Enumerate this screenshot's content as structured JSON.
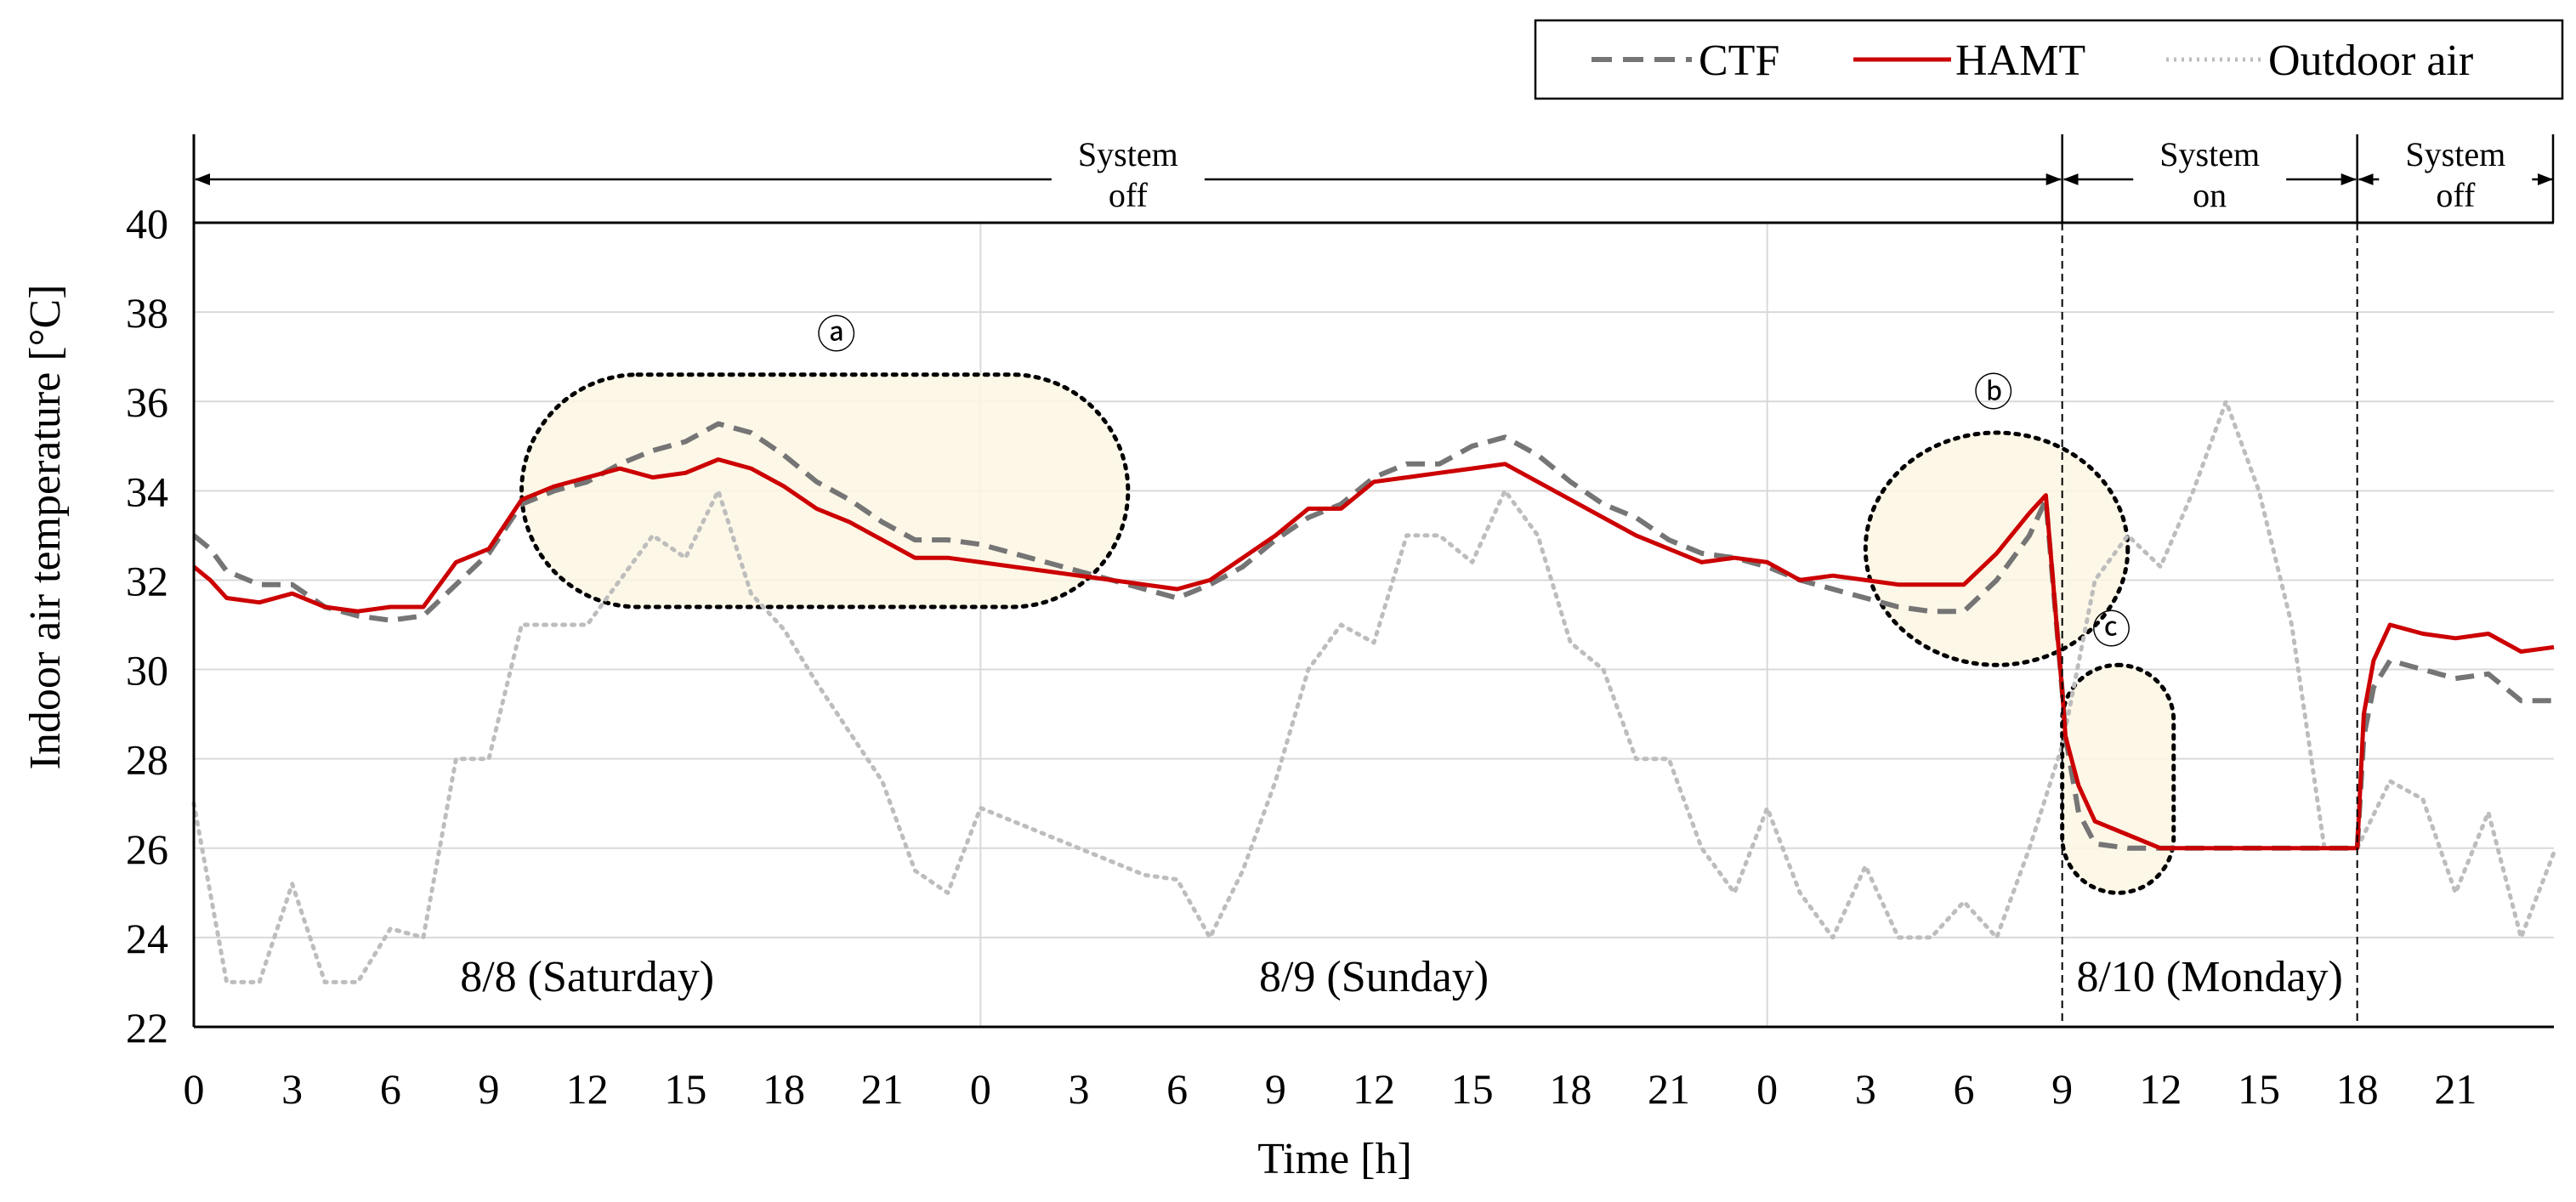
{
  "chart_data": {
    "type": "line",
    "ylabel": "Indoor air temperature [°C]",
    "xlabel": "Time [h]",
    "ylim": [
      22,
      40
    ],
    "y_ticks": [
      22,
      24,
      26,
      28,
      30,
      32,
      34,
      36,
      38,
      40
    ],
    "x_range_hours": [
      0,
      72
    ],
    "x_tick_labels": [
      "0",
      "3",
      "6",
      "9",
      "12",
      "15",
      "18",
      "21",
      "0",
      "3",
      "6",
      "9",
      "12",
      "15",
      "18",
      "21",
      "0",
      "3",
      "6",
      "9",
      "12",
      "15",
      "18",
      "21"
    ],
    "grid": true,
    "legend_position": "top-right",
    "legend": [
      "CTF",
      "HAMT",
      "Outdoor air"
    ],
    "day_labels": [
      {
        "label": "8/8 (Saturday)",
        "hour": 12
      },
      {
        "label": "8/9 (Sunday)",
        "hour": 36
      },
      {
        "label": "8/10 (Monday)",
        "hour": 61.5
      }
    ],
    "periods": [
      {
        "line1": "System",
        "line2": "off",
        "start": 0,
        "end": 57
      },
      {
        "line1": "System",
        "line2": "on",
        "start": 57,
        "end": 66
      },
      {
        "line1": "System",
        "line2": "off",
        "start": 66,
        "end": 72
      }
    ],
    "annotations": [
      {
        "symbol": "ⓐ",
        "kind": "stadium",
        "x_range": [
          10,
          28.5
        ],
        "y_range": [
          31.4,
          36.6
        ],
        "label_at": [
          19.6,
          37.5
        ]
      },
      {
        "symbol": "ⓑ",
        "kind": "ellipse",
        "x_range": [
          51,
          59
        ],
        "y_range": [
          30.1,
          35.3
        ],
        "label_at": [
          54.9,
          36.2
        ]
      },
      {
        "symbol": "ⓒ",
        "kind": "stadium",
        "x_range": [
          57,
          60.4
        ],
        "y_range": [
          25,
          30.1
        ],
        "label_at": [
          58.5,
          30.9
        ]
      }
    ],
    "series": [
      {
        "name": "CTF",
        "color": "#757575",
        "style": "dashed",
        "x": [
          0,
          0.5,
          1,
          2,
          3,
          4,
          5,
          6,
          7,
          8,
          9,
          10,
          11,
          12,
          13,
          14,
          15,
          16,
          17,
          18,
          19,
          20,
          21,
          22,
          23,
          24,
          25,
          26,
          27,
          28,
          29,
          30,
          31,
          32,
          33,
          34,
          35,
          36,
          37,
          38,
          39,
          40,
          41,
          42,
          43,
          44,
          45,
          46,
          47,
          48,
          49,
          50,
          51,
          52,
          53,
          54,
          55,
          56,
          56.5,
          57,
          57.1,
          57.5,
          58,
          59,
          60,
          61,
          62,
          63,
          64,
          65,
          66,
          66.2,
          66.5,
          67,
          68,
          69,
          70,
          71,
          72
        ],
        "y": [
          33,
          32.7,
          32.2,
          31.9,
          31.9,
          31.4,
          31.2,
          31.1,
          31.2,
          31.9,
          32.6,
          33.7,
          34.0,
          34.2,
          34.6,
          34.9,
          35.1,
          35.5,
          35.3,
          34.8,
          34.2,
          33.8,
          33.3,
          32.9,
          32.9,
          32.8,
          32.6,
          32.4,
          32.2,
          32.0,
          31.8,
          31.6,
          31.9,
          32.3,
          32.9,
          33.4,
          33.7,
          34.3,
          34.6,
          34.6,
          35.0,
          35.2,
          34.8,
          34.2,
          33.7,
          33.4,
          32.9,
          32.6,
          32.5,
          32.3,
          32.0,
          31.8,
          31.6,
          31.4,
          31.3,
          31.3,
          32.0,
          33.0,
          33.8,
          29.5,
          28.5,
          26.8,
          26.1,
          26.0,
          26.0,
          26.0,
          26.0,
          26.0,
          26.0,
          26.0,
          26.0,
          28.5,
          29.6,
          30.2,
          30.0,
          29.8,
          29.9,
          29.3,
          29.3
        ]
      },
      {
        "name": "HAMT",
        "color": "#cc0000",
        "style": "solid",
        "x": [
          0,
          0.5,
          1,
          2,
          3,
          4,
          5,
          6,
          7,
          8,
          9,
          10,
          11,
          12,
          13,
          14,
          15,
          16,
          17,
          18,
          19,
          20,
          21,
          22,
          23,
          24,
          25,
          26,
          27,
          28,
          29,
          30,
          31,
          32,
          33,
          34,
          35,
          36,
          37,
          38,
          39,
          40,
          41,
          42,
          43,
          44,
          45,
          46,
          47,
          48,
          49,
          50,
          51,
          52,
          53,
          54,
          55,
          56,
          56.5,
          57,
          57.1,
          57.5,
          58,
          59,
          60,
          61,
          62,
          63,
          64,
          65,
          66,
          66.2,
          66.5,
          67,
          68,
          69,
          70,
          71,
          72
        ],
        "y": [
          32.3,
          32.0,
          31.6,
          31.5,
          31.7,
          31.4,
          31.3,
          31.4,
          31.4,
          32.4,
          32.7,
          33.8,
          34.1,
          34.3,
          34.5,
          34.3,
          34.4,
          34.7,
          34.5,
          34.1,
          33.6,
          33.3,
          32.9,
          32.5,
          32.5,
          32.4,
          32.3,
          32.2,
          32.1,
          32.0,
          31.9,
          31.8,
          32.0,
          32.5,
          33.0,
          33.6,
          33.6,
          34.2,
          34.3,
          34.4,
          34.5,
          34.6,
          34.2,
          33.8,
          33.4,
          33.0,
          32.7,
          32.4,
          32.5,
          32.4,
          32.0,
          32.1,
          32.0,
          31.9,
          31.9,
          31.9,
          32.6,
          33.5,
          33.9,
          29.5,
          28.5,
          27.4,
          26.6,
          26.3,
          26.0,
          26.0,
          26.0,
          26.0,
          26.0,
          26.0,
          26.0,
          29.0,
          30.2,
          31.0,
          30.8,
          30.7,
          30.8,
          30.4,
          30.5
        ]
      },
      {
        "name": "Outdoor air",
        "color": "#bdbdbd",
        "style": "dotted",
        "x": [
          0,
          1,
          2,
          3,
          4,
          5,
          6,
          7,
          8,
          9,
          10,
          11,
          12,
          13,
          14,
          15,
          16,
          17,
          18,
          19,
          20,
          21,
          22,
          23,
          24,
          25,
          26,
          27,
          28,
          29,
          30,
          31,
          32,
          33,
          34,
          35,
          36,
          37,
          38,
          39,
          40,
          41,
          42,
          43,
          44,
          45,
          46,
          47,
          48,
          49,
          50,
          51,
          52,
          53,
          54,
          55,
          56,
          57,
          58,
          59,
          60,
          61,
          62,
          63,
          64,
          65,
          66,
          67,
          68,
          69,
          70,
          71,
          72
        ],
        "y": [
          27,
          23,
          23,
          25.2,
          23,
          23,
          24.2,
          24,
          28,
          28,
          31,
          31,
          31,
          32,
          33,
          32.5,
          34,
          31.7,
          30.9,
          29.7,
          28.6,
          27.5,
          25.5,
          25,
          26.9,
          26.6,
          26.3,
          26.0,
          25.7,
          25.4,
          25.3,
          24,
          25.5,
          27.5,
          30,
          31,
          30.6,
          33,
          33,
          32.4,
          34,
          33,
          30.6,
          30,
          28,
          28,
          26,
          25,
          26.9,
          25,
          24,
          25.6,
          24,
          24,
          24.8,
          24,
          26,
          28.3,
          32,
          33,
          32.3,
          34,
          36,
          34,
          31,
          26,
          26,
          27.5,
          27.1,
          25,
          26.8,
          24,
          25.9
        ]
      }
    ]
  }
}
